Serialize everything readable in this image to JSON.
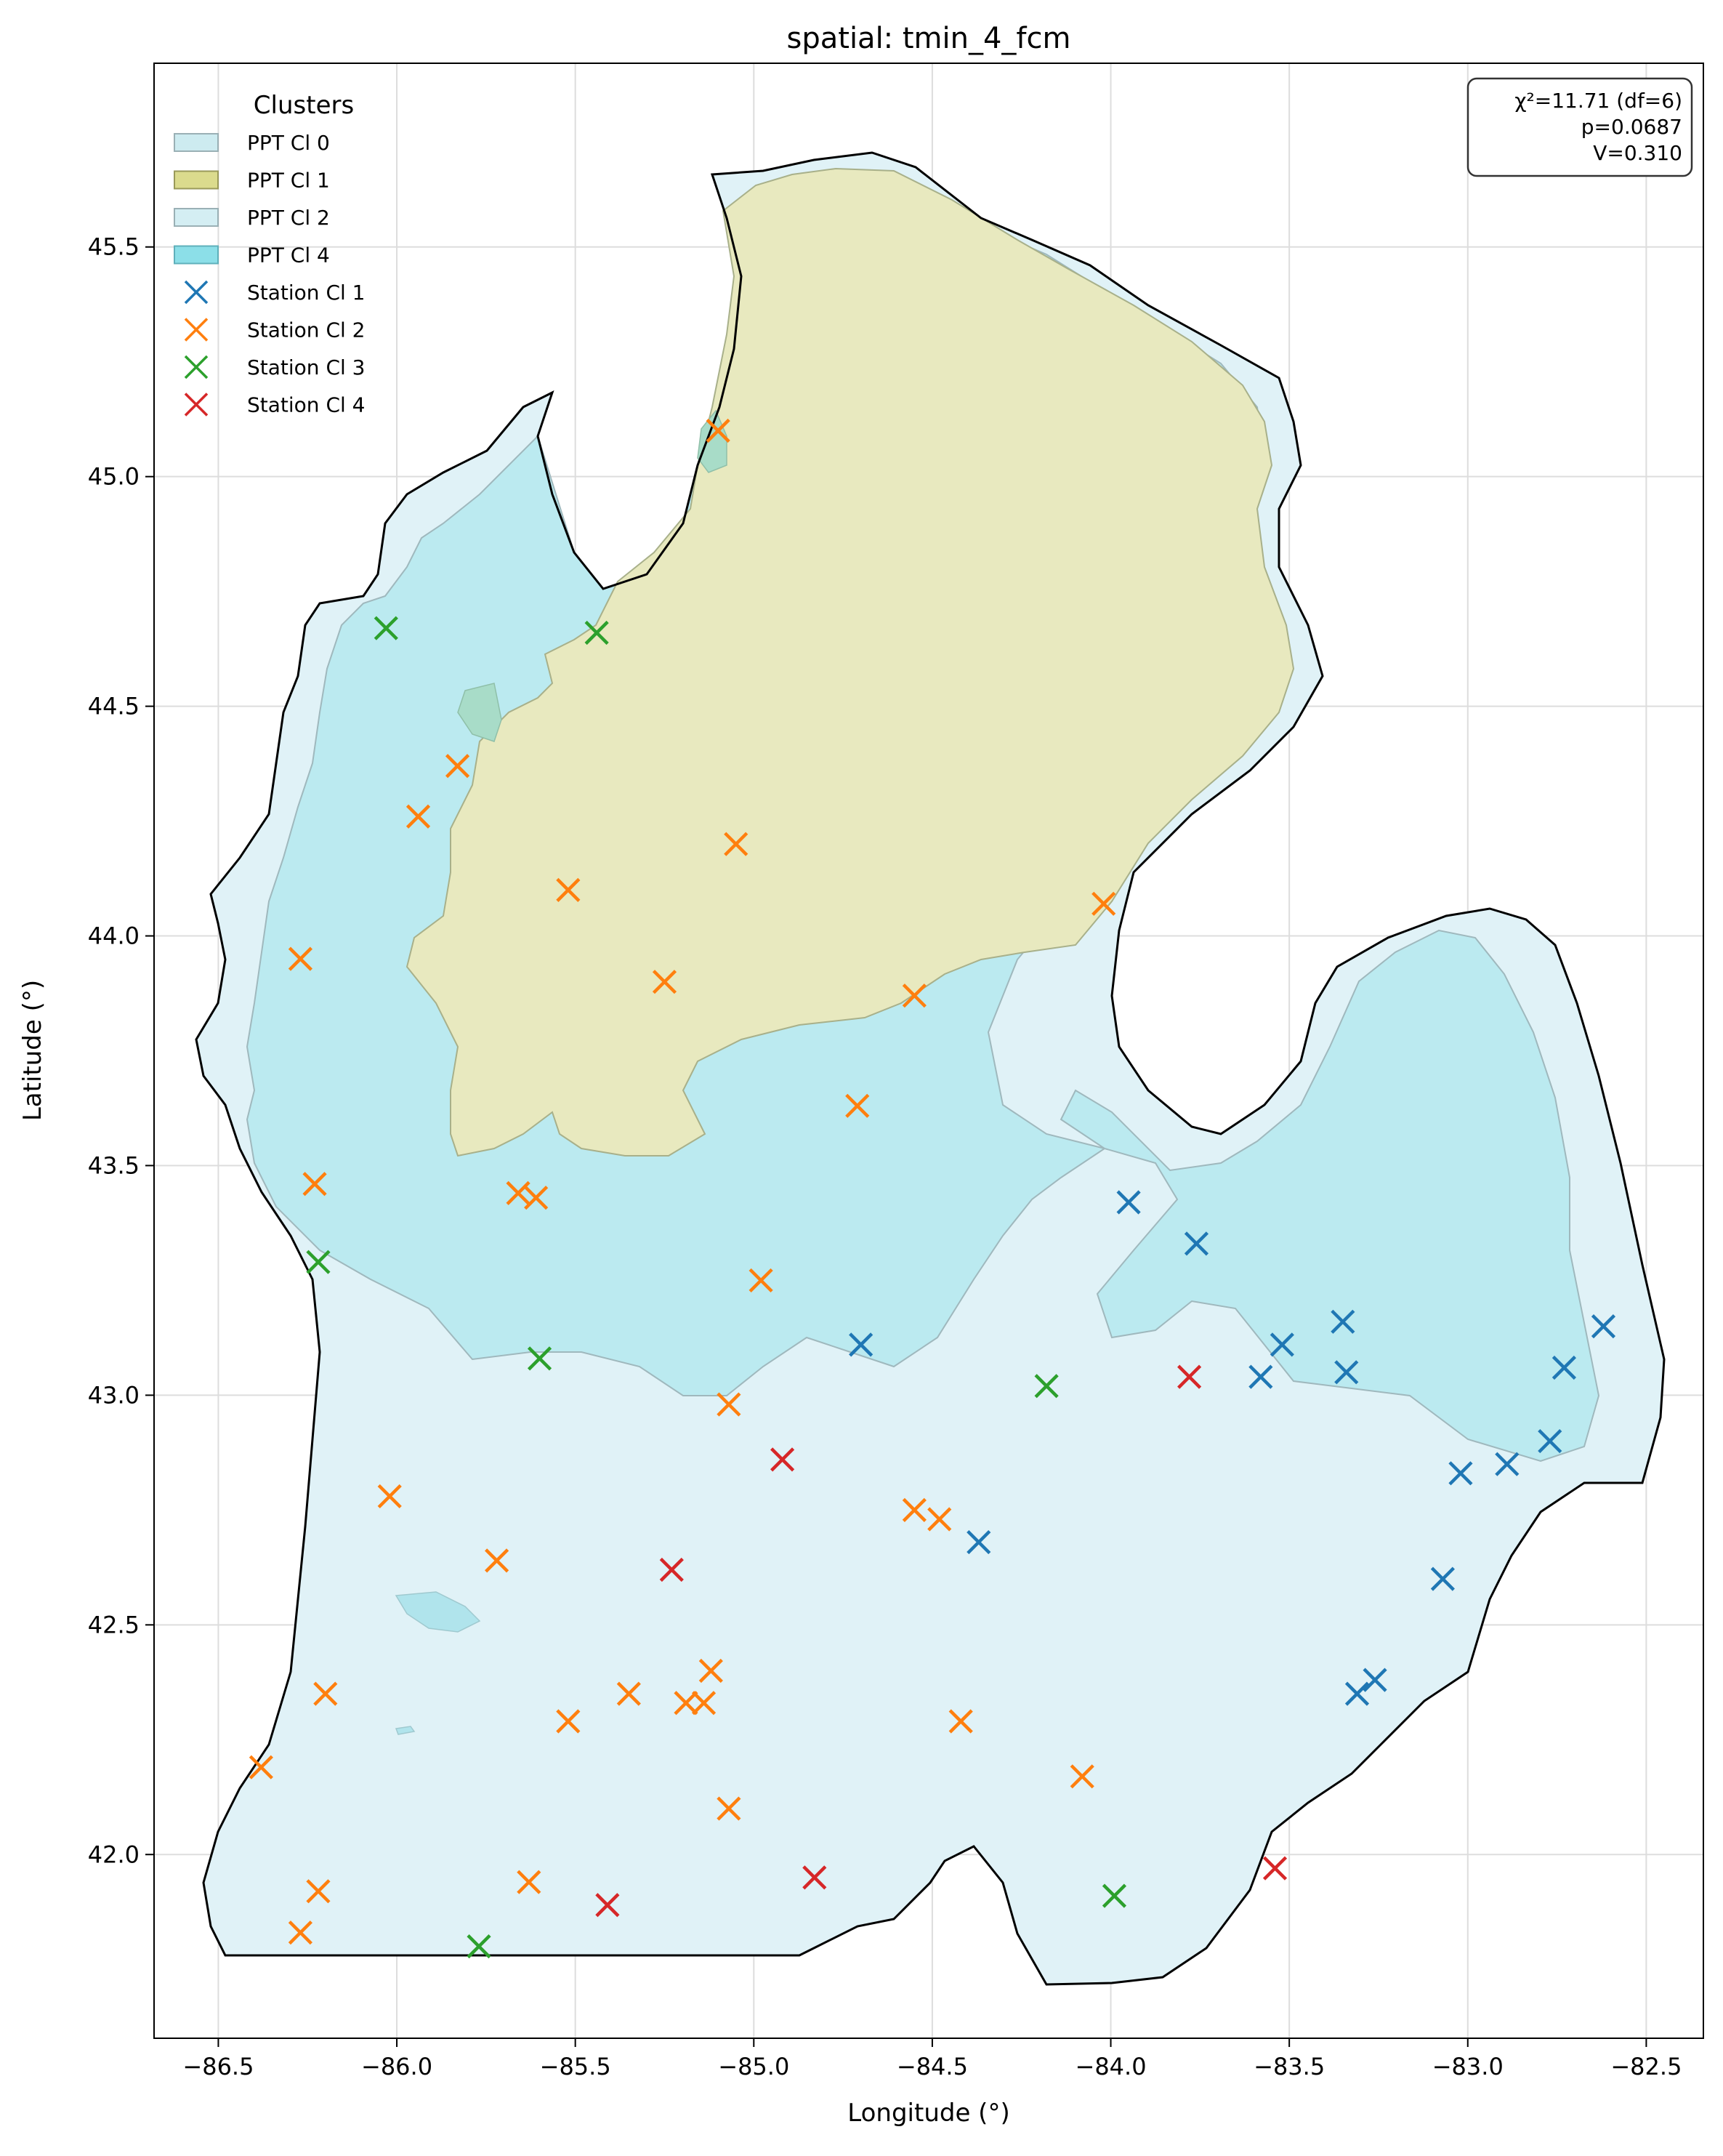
{
  "title": "spatial: tmin_4_fcm",
  "xlabel": "Longitude (°)",
  "ylabel": "Latitude (°)",
  "xlim": [
    -86.68,
    -82.34
  ],
  "ylim": [
    41.6,
    45.9
  ],
  "xticks": [
    -86.5,
    -86.0,
    -85.5,
    -85.0,
    -84.5,
    -84.0,
    -83.5,
    -83.0,
    -82.5
  ],
  "xtick_labels": [
    "−86.5",
    "−86.0",
    "−85.5",
    "−85.0",
    "−84.5",
    "−84.0",
    "−83.5",
    "−83.0",
    "−82.5"
  ],
  "yticks": [
    42.0,
    42.5,
    43.0,
    43.5,
    44.0,
    44.5,
    45.0,
    45.5
  ],
  "ytick_labels": [
    "42.0",
    "42.5",
    "43.0",
    "43.5",
    "44.0",
    "44.5",
    "45.0",
    "45.5"
  ],
  "grid": true,
  "legend": {
    "title": "Clusters",
    "placement": "top-left",
    "entries": [
      {
        "label": "PPT Cl 0",
        "kind": "patch",
        "color": "#cdebf0"
      },
      {
        "label": "PPT Cl 1",
        "kind": "patch",
        "color": "#dbdb8d"
      },
      {
        "label": "PPT Cl 2",
        "kind": "patch",
        "color": "#d4eef3"
      },
      {
        "label": "PPT Cl 4",
        "kind": "patch",
        "color": "#8cdfe8"
      },
      {
        "label": "Station Cl 1",
        "kind": "marker",
        "color": "#1f77b4"
      },
      {
        "label": "Station Cl 2",
        "kind": "marker",
        "color": "#ff7f0e"
      },
      {
        "label": "Station Cl 3",
        "kind": "marker",
        "color": "#2ca02c"
      },
      {
        "label": "Station Cl 4",
        "kind": "marker",
        "color": "#d62728"
      }
    ]
  },
  "stats": {
    "line1": "χ²=11.71 (df=6)",
    "line2": "p=0.0687",
    "line3": "V=0.310"
  },
  "colors": {
    "region_light": "#e0f2f7",
    "region_cyan": "#bbeaf0",
    "region_olive": "#e8e9bf",
    "outline": "#000000"
  },
  "chart_data": {
    "type": "scatter",
    "title": "spatial: tmin_4_fcm",
    "xlabel": "Longitude (°)",
    "ylabel": "Latitude (°)",
    "series": [
      {
        "name": "Station Cl 1",
        "color": "#1f77b4",
        "points": [
          [
            -83.95,
            43.42
          ],
          [
            -83.76,
            43.33
          ],
          [
            -84.7,
            43.11
          ],
          [
            -83.58,
            43.04
          ],
          [
            -83.52,
            43.11
          ],
          [
            -83.35,
            43.16
          ],
          [
            -83.34,
            43.05
          ],
          [
            -82.62,
            43.15
          ],
          [
            -82.73,
            43.06
          ],
          [
            -82.77,
            42.9
          ],
          [
            -83.02,
            42.83
          ],
          [
            -82.89,
            42.85
          ],
          [
            -84.37,
            42.68
          ],
          [
            -83.07,
            42.6
          ],
          [
            -83.31,
            42.35
          ],
          [
            -83.26,
            42.38
          ]
        ]
      },
      {
        "name": "Station Cl 2",
        "color": "#ff7f0e",
        "points": [
          [
            -85.1,
            45.1
          ],
          [
            -85.83,
            44.37
          ],
          [
            -85.94,
            44.26
          ],
          [
            -85.05,
            44.2
          ],
          [
            -85.52,
            44.1
          ],
          [
            -84.02,
            44.07
          ],
          [
            -86.27,
            43.95
          ],
          [
            -85.25,
            43.9
          ],
          [
            -84.55,
            43.87
          ],
          [
            -84.71,
            43.63
          ],
          [
            -86.23,
            43.46
          ],
          [
            -85.66,
            43.44
          ],
          [
            -85.61,
            43.43
          ],
          [
            -84.98,
            43.25
          ],
          [
            -85.07,
            42.98
          ],
          [
            -86.02,
            42.78
          ],
          [
            -84.55,
            42.75
          ],
          [
            -84.48,
            42.73
          ],
          [
            -85.72,
            42.64
          ],
          [
            -86.2,
            42.35
          ],
          [
            -85.35,
            42.35
          ],
          [
            -85.12,
            42.4
          ],
          [
            -85.19,
            42.33
          ],
          [
            -85.14,
            42.33
          ],
          [
            -85.52,
            42.29
          ],
          [
            -84.42,
            42.29
          ],
          [
            -86.38,
            42.19
          ],
          [
            -84.08,
            42.17
          ],
          [
            -85.07,
            42.1
          ],
          [
            -85.63,
            41.94
          ],
          [
            -86.22,
            41.92
          ],
          [
            -86.27,
            41.83
          ]
        ]
      },
      {
        "name": "Station Cl 3",
        "color": "#2ca02c",
        "points": [
          [
            -86.03,
            44.67
          ],
          [
            -85.44,
            44.66
          ],
          [
            -86.22,
            43.29
          ],
          [
            -85.6,
            43.08
          ],
          [
            -84.18,
            43.02
          ],
          [
            -83.99,
            41.91
          ],
          [
            -85.77,
            41.8
          ]
        ]
      },
      {
        "name": "Station Cl 4",
        "color": "#d62728",
        "points": [
          [
            -83.78,
            43.04
          ],
          [
            -84.92,
            42.86
          ],
          [
            -85.23,
            42.62
          ],
          [
            -84.83,
            41.95
          ],
          [
            -83.54,
            41.97
          ],
          [
            -85.41,
            41.89
          ]
        ]
      }
    ],
    "regions": [
      {
        "name": "PPT Cl 0",
        "color": "#e0f2f7"
      },
      {
        "name": "PPT Cl 4",
        "color": "#bbeaf0"
      },
      {
        "name": "PPT Cl 1",
        "color": "#e8e9bf"
      }
    ]
  }
}
